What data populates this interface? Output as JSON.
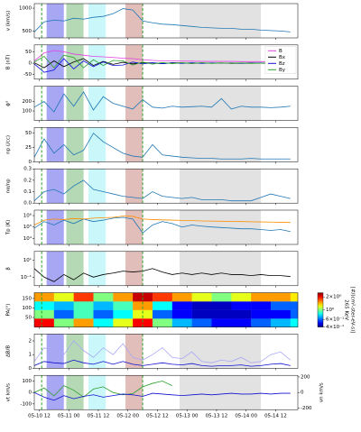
{
  "chart_data": {
    "type": "multipanel",
    "x": [
      "05-10 10",
      "05-10 14",
      "05-10 18",
      "05-10 22",
      "05-11 02",
      "05-11 06",
      "05-11 10",
      "05-11 14",
      "05-11 18",
      "05-11 22",
      "05-12 02",
      "05-12 06",
      "05-12 10",
      "05-12 14",
      "05-12 18",
      "05-12 22",
      "05-13 02",
      "05-13 06",
      "05-13 10",
      "05-13 14",
      "05-13 18",
      "05-13 22",
      "05-14 02",
      "05-14 06",
      "05-14 10",
      "05-14 14",
      "05-14 18"
    ],
    "xlim": [
      "05-10 10",
      "05-14 21"
    ],
    "xticks": [
      "05-10 12",
      "05-11 00",
      "05-11 12",
      "05-12 00",
      "05-12 12",
      "05-13 00",
      "05-13 12",
      "05-14 00",
      "05-14 12"
    ],
    "regions": [
      {
        "start": "05-10 15",
        "end": "05-10 22",
        "color": "#8a8af0"
      },
      {
        "start": "05-10 23",
        "end": "05-11 06",
        "color": "#9ccc9c"
      },
      {
        "start": "05-11 08",
        "end": "05-11 15",
        "color": "#b8f4f8"
      },
      {
        "start": "05-11 23",
        "end": "05-12 06",
        "color": "#d8a8a4"
      },
      {
        "start": "05-12 21",
        "end": "05-14 06",
        "color": "#d8d8d8"
      }
    ],
    "markers": [
      "05-10 13",
      "05-12 06"
    ],
    "marker_color": "#2ca02c",
    "panels": [
      {
        "type": "line",
        "ylabel": "v (km/s)",
        "ylim": [
          350,
          1100
        ],
        "yticks": [
          500,
          1000
        ],
        "series": [
          {
            "color": "#1f77b4",
            "values": [
              480,
              700,
              740,
              720,
              780,
              760,
              800,
              820,
              880,
              990,
              960,
              720,
              680,
              650,
              640,
              620,
              600,
              580,
              570,
              560,
              560,
              540,
              540,
              520,
              510,
              500,
              480
            ]
          }
        ]
      },
      {
        "type": "line",
        "ylabel": "B (nT)",
        "ylim": [
          -70,
          80
        ],
        "yticks": [
          -50,
          0,
          50
        ],
        "legend": "upper right",
        "series": [
          {
            "name": "B",
            "color": "#e040e0",
            "values": [
              10,
              45,
              55,
              50,
              40,
              35,
              30,
              28,
              25,
              22,
              20,
              15,
              12,
              10,
              10,
              9,
              9,
              8,
              8,
              8,
              8,
              7,
              7,
              7,
              7,
              7,
              6
            ]
          },
          {
            "name": "Bx",
            "color": "#000000",
            "values": [
              2,
              -20,
              10,
              -15,
              5,
              20,
              -10,
              8,
              -5,
              4,
              -3,
              2,
              1,
              -2,
              2,
              1,
              -1,
              1,
              0,
              1,
              -1,
              0,
              1,
              0,
              -1,
              0,
              1
            ]
          },
          {
            "name": "Bz",
            "color": "#1010e0",
            "values": [
              -3,
              -40,
              -30,
              20,
              -25,
              10,
              -15,
              5,
              -10,
              -8,
              5,
              -3,
              2,
              -2,
              1,
              -1,
              2,
              -1,
              1,
              0,
              1,
              -1,
              0,
              1,
              0,
              -1,
              0
            ]
          },
          {
            "name": "By",
            "color": "#2ca02c",
            "values": [
              5,
              30,
              -20,
              35,
              25,
              -20,
              15,
              -10,
              12,
              10,
              -8,
              5,
              -4,
              3,
              -2,
              2,
              -1,
              2,
              -1,
              1,
              0,
              1,
              -1,
              0,
              1,
              0,
              1
            ]
          }
        ]
      },
      {
        "type": "line",
        "ylabel": "ϕ°",
        "ylim": [
          0,
          360
        ],
        "yticks": [
          100,
          200
        ],
        "series": [
          {
            "color": "#1f77b4",
            "values": [
              140,
              200,
              90,
              280,
              150,
              300,
              110,
              250,
              180,
              150,
              120,
              220,
              140,
              130,
              150,
              140,
              145,
              150,
              140,
              230,
              120,
              150,
              140,
              140,
              135,
              140,
              150
            ]
          }
        ]
      },
      {
        "type": "line",
        "ylabel": "np (/cc)",
        "ylim": [
          0,
          60
        ],
        "yticks": [
          0,
          25,
          50
        ],
        "series": [
          {
            "color": "#1f77b4",
            "values": [
              8,
              40,
              15,
              30,
              12,
              20,
              50,
              35,
              25,
              15,
              10,
              8,
              30,
              12,
              10,
              8,
              7,
              6,
              6,
              5,
              5,
              5,
              6,
              5,
              5,
              5,
              5
            ]
          }
        ]
      },
      {
        "type": "line",
        "ylabel": "nα/np",
        "ylim": [
          0,
          0.3
        ],
        "yticks": [
          {
            "value": 0,
            "label": "0.0"
          },
          0.1,
          0.2,
          0.3
        ],
        "series": [
          {
            "color": "#1f77b4",
            "values": [
              0.02,
              0.1,
              0.12,
              0.08,
              0.15,
              0.2,
              0.12,
              0.1,
              0.08,
              0.06,
              0.05,
              0.04,
              0.1,
              0.06,
              0.05,
              0.04,
              0.05,
              0.03,
              0.03,
              0.03,
              0.02,
              0.02,
              0.02,
              0.05,
              0.08,
              0.06,
              0.04
            ]
          }
        ]
      },
      {
        "type": "line",
        "ylabel": "Tp (K)",
        "log": true,
        "ylim": [
          3000,
          3000000
        ],
        "yticks": [
          {
            "value": 10000,
            "label": "10⁴"
          },
          {
            "value": 100000,
            "label": "10⁵"
          },
          {
            "value": 1000000,
            "label": "10⁶"
          }
        ],
        "series": [
          {
            "color": "#1f77b4",
            "values": [
              80000,
              300000,
              150000,
              400000,
              200000,
              500000,
              300000,
              400000,
              600000,
              700000,
              500000,
              30000,
              150000,
              300000,
              200000,
              100000,
              150000,
              120000,
              100000,
              90000,
              80000,
              70000,
              70000,
              60000,
              50000,
              60000,
              40000
            ]
          },
          {
            "color": "#ff8c00",
            "values": [
              150000,
              400000,
              500000,
              450000,
              550000,
              500000,
              600000,
              650000,
              700000,
              900000,
              850000,
              500000,
              450000,
              420000,
              400000,
              380000,
              360000,
              340000,
              330000,
              320000,
              310000,
              300000,
              290000,
              280000,
              270000,
              260000,
              250000
            ]
          }
        ]
      },
      {
        "type": "line",
        "ylabel": "β",
        "log": true,
        "ylim": [
          0.01,
          100
        ],
        "yticks": [
          {
            "value": 0.1,
            "label": "10⁻¹"
          },
          {
            "value": 10,
            "label": "10¹"
          }
        ],
        "series": [
          {
            "color": "#000000",
            "values": [
              1,
              0.1,
              0.03,
              0.2,
              0.05,
              0.3,
              0.1,
              0.2,
              0.3,
              0.5,
              0.4,
              0.5,
              1,
              0.4,
              0.2,
              0.3,
              0.2,
              0.3,
              0.2,
              0.3,
              0.2,
              0.2,
              0.15,
              0.2,
              0.15,
              0.15,
              0.12
            ]
          }
        ]
      },
      {
        "type": "heatmap",
        "ylabel": "PA(°)",
        "ylim": [
          0,
          180
        ],
        "yticks": [
          50,
          100,
          150
        ],
        "x_edges": [
          "05-10 10",
          "05-10 18",
          "05-11 02",
          "05-11 10",
          "05-11 18",
          "05-12 02",
          "05-12 10",
          "05-12 18",
          "05-13 02",
          "05-13 10",
          "05-13 18",
          "05-14 02",
          "05-14 10",
          "05-14 18",
          "05-14 21"
        ],
        "pa_bins": [
          0,
          45,
          90,
          135,
          180
        ],
        "z": [
          [
            2,
            1,
            1.5,
            0.8,
            1.2,
            2,
            1,
            0.7,
            0.6,
            0.5,
            0.5,
            0.6,
            0.7,
            0.8
          ],
          [
            1,
            0.6,
            0.9,
            0.6,
            0.8,
            1.2,
            0.6,
            0.5,
            0.45,
            0.45,
            0.45,
            0.5,
            0.5,
            0.6
          ],
          [
            0.8,
            0.7,
            0.9,
            0.7,
            0.9,
            1.5,
            0.8,
            0.5,
            0.45,
            0.45,
            0.5,
            0.5,
            0.6,
            0.6
          ],
          [
            1.5,
            1.2,
            1.8,
            1,
            1.5,
            2.2,
            1.8,
            1.5,
            1.2,
            1,
            1.2,
            1.5,
            1.5,
            1.3
          ]
        ],
        "clim": [
          0.4,
          2.5
        ],
        "cticks": [
          {
            "value": 0.4,
            "label": "4×10⁻¹"
          },
          {
            "value": 0.6,
            "label": "6×10⁻¹"
          },
          {
            "value": 1,
            "label": "10⁰"
          },
          {
            "value": 2,
            "label": "2×10⁰"
          }
        ],
        "clabel": [
          "265 KeV",
          "[#/(cm²-ster-eV-s)]"
        ]
      },
      {
        "type": "line",
        "ylabel": "ΔB/B",
        "ylim": [
          0,
          2.5
        ],
        "yticks": [
          0,
          1,
          2
        ],
        "series": [
          {
            "color": "#a8a8f4",
            "values": [
              0.5,
              1.5,
              1.2,
              1,
              2,
              1.3,
              0.8,
              1.5,
              1,
              1.8,
              0.8,
              0.6,
              1,
              1.5,
              0.8,
              0.7,
              1.2,
              0.5,
              0.4,
              0.6,
              0.5,
              0.8,
              0.4,
              0.5,
              1,
              1.2,
              0.6
            ]
          },
          {
            "color": "#1010d0",
            "values": [
              0.2,
              0.5,
              0.4,
              0.35,
              0.6,
              0.4,
              0.3,
              0.5,
              0.3,
              0.5,
              0.3,
              0.2,
              0.3,
              0.4,
              0.3,
              0.25,
              0.35,
              0.2,
              0.15,
              0.2,
              0.2,
              0.25,
              0.15,
              0.2,
              0.3,
              0.35,
              0.2
            ]
          }
        ]
      },
      {
        "type": "line",
        "ylabel": "vt km/s",
        "ylabel_color": "#2ca02c",
        "y2label": "vn km/s",
        "y2label_color": "#1010d0",
        "ylim": [
          -150,
          150
        ],
        "yticks": [
          -100,
          0,
          100
        ],
        "y2lim": [
          -220,
          220
        ],
        "y2ticks": [
          -200,
          0,
          200
        ],
        "series": [
          {
            "color": "#2ca02c",
            "values": [
              0,
              40,
              -30,
              60,
              20,
              -40,
              30,
              50,
              0,
              -20,
              -10,
              50,
              80,
              100,
              60,
              null,
              null,
              null,
              null,
              null,
              null,
              null,
              null,
              null,
              null,
              null,
              null
            ]
          },
          {
            "color": "#1010d0",
            "axis": "y2",
            "values": [
              0,
              -60,
              -100,
              -40,
              -80,
              -50,
              -30,
              -60,
              -40,
              -20,
              -30,
              -50,
              -10,
              -20,
              -30,
              -40,
              -30,
              -20,
              -30,
              -20,
              -10,
              -20,
              -20,
              -10,
              -20,
              -10,
              -10
            ]
          }
        ]
      }
    ]
  }
}
